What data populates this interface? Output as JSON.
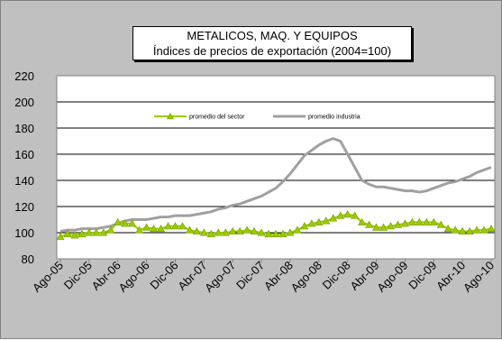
{
  "chart_data": {
    "type": "line",
    "title": "METALICOS, MAQ. Y EQUIPOS",
    "subtitle": "Índices de precios de exportación (2004=100)",
    "xlabel": "",
    "ylabel": "",
    "ylim": [
      80,
      220
    ],
    "yticks": [
      "220",
      "200",
      "180",
      "160",
      "140",
      "120",
      "100",
      "80"
    ],
    "x_tick_labels": [
      "Ago-05",
      "Dic-05",
      "Abr-06",
      "Ago-06",
      "Dic-06",
      "Abr-07",
      "Ago-07",
      "Dic-07",
      "Abr-08",
      "Ago-08",
      "Dic-08",
      "Abr-09",
      "Ago-09",
      "Dic-09",
      "Abr-10",
      "Ago-10"
    ],
    "grid": "horizontal",
    "legend_placement": "top-center",
    "series": [
      {
        "name": "promedio del sector",
        "color": "#99cc00",
        "marker": "triangle",
        "values": [
          97,
          99,
          98,
          99,
          100,
          100,
          100,
          102,
          108,
          107,
          107,
          102,
          104,
          103,
          103,
          105,
          105,
          105,
          102,
          101,
          100,
          99,
          100,
          100,
          101,
          101,
          102,
          101,
          100,
          99,
          99,
          99,
          100,
          102,
          105,
          107,
          108,
          109,
          111,
          113,
          114,
          113,
          108,
          106,
          104,
          104,
          105,
          106,
          107,
          108,
          108,
          108,
          108,
          106,
          103,
          102,
          101,
          101,
          102,
          102,
          103
        ]
      },
      {
        "name": "promedio industria",
        "color": "#a0a0a0",
        "values": [
          101,
          102,
          102,
          103,
          103,
          103,
          104,
          105,
          107,
          109,
          110,
          110,
          110,
          111,
          112,
          112,
          113,
          113,
          113,
          114,
          115,
          116,
          118,
          119,
          121,
          122,
          124,
          126,
          128,
          131,
          134,
          139,
          145,
          152,
          159,
          163,
          167,
          170,
          172,
          170,
          160,
          150,
          140,
          137,
          135,
          135,
          134,
          133,
          132,
          132,
          131,
          132,
          134,
          136,
          138,
          139,
          141,
          143,
          146,
          148,
          150
        ]
      }
    ]
  }
}
